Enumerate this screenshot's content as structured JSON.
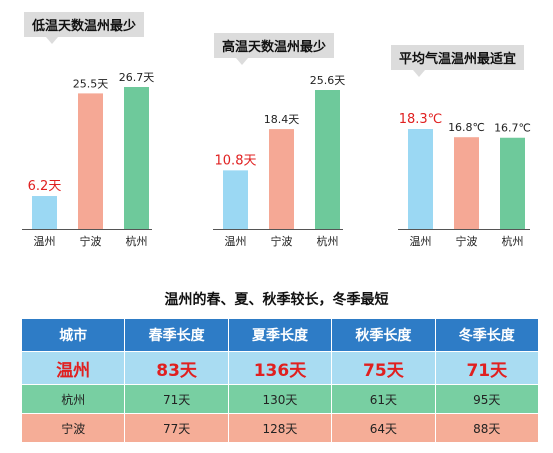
{
  "colors": {
    "wenzhou": "#9bd8f3",
    "ningbo": "#f5a895",
    "hangzhou": "#6ec99b",
    "highlight": "#e02020",
    "axis": "#555555"
  },
  "chart_data": [
    {
      "type": "bar",
      "title": "低温天数温州最少",
      "categories": [
        "温州",
        "宁波",
        "杭州"
      ],
      "values": [
        6.2,
        25.5,
        26.7
      ],
      "labels": [
        "6.2天",
        "25.5天",
        "26.7天"
      ],
      "ylim": [
        0,
        30
      ]
    },
    {
      "type": "bar",
      "title": "高温天数温州最少",
      "categories": [
        "温州",
        "宁波",
        "杭州"
      ],
      "values": [
        10.8,
        18.4,
        25.6
      ],
      "labels": [
        "10.8天",
        "18.4天",
        "25.6天"
      ],
      "ylim": [
        0,
        30
      ]
    },
    {
      "type": "bar",
      "title": "平均气温温州最适宜",
      "categories": [
        "温州",
        "宁波",
        "杭州"
      ],
      "values": [
        18.3,
        16.8,
        16.7
      ],
      "labels": [
        "18.3℃",
        "16.8℃",
        "16.7℃"
      ],
      "ylim": [
        0,
        21.5
      ]
    },
    {
      "type": "table",
      "title": "温州的春、夏、秋季较长，冬季最短",
      "columns": [
        "城市",
        "春季长度",
        "夏季长度",
        "秋季长度",
        "冬季长度"
      ],
      "rows": [
        [
          "温州",
          "83天",
          "136天",
          "75天",
          "71天"
        ],
        [
          "杭州",
          "71天",
          "130天",
          "61天",
          "95天"
        ],
        [
          "宁波",
          "77天",
          "128天",
          "64天",
          "88天"
        ]
      ]
    }
  ]
}
